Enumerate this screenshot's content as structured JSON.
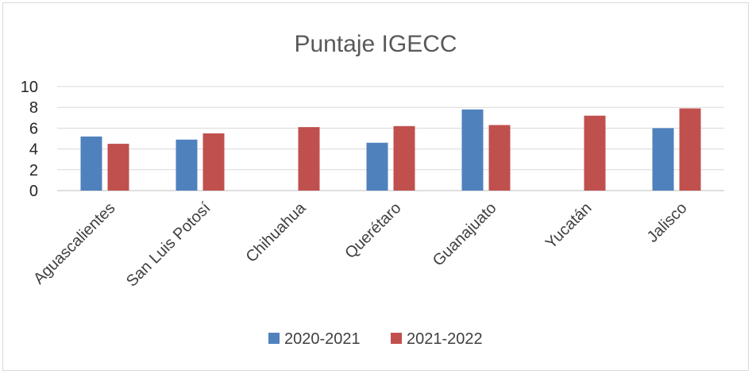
{
  "chart_data": {
    "type": "bar",
    "title": "Puntaje IGECC",
    "xlabel": "",
    "ylabel": "",
    "ylim": [
      0,
      10
    ],
    "yticks": [
      0,
      2,
      4,
      6,
      8,
      10
    ],
    "grid": true,
    "legend_position": "bottom",
    "categories": [
      "Aguascalientes",
      "San Luis Potosí",
      "Chihuahua",
      "Querétaro",
      "Guanajuato",
      "Yucatán",
      "Jalisco"
    ],
    "series": [
      {
        "name": "2020-2021",
        "color": "#4F81BD",
        "values": [
          5.2,
          4.9,
          null,
          4.6,
          7.8,
          null,
          6.0
        ]
      },
      {
        "name": "2021-2022",
        "color": "#C0504D",
        "values": [
          4.5,
          5.5,
          6.1,
          6.2,
          6.3,
          7.2,
          7.9
        ]
      }
    ]
  }
}
